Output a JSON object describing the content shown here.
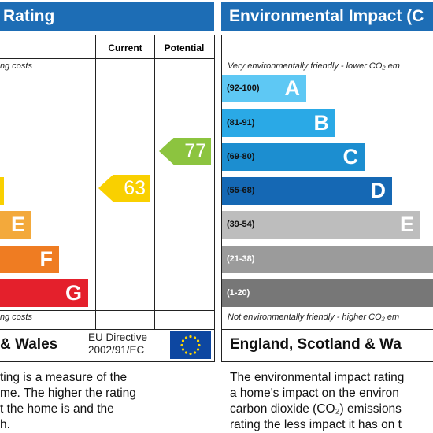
{
  "energy": {
    "title": "Rating",
    "columns": [
      "Current",
      "Potential"
    ],
    "top_note": "ng costs",
    "bands": [
      "E",
      "F",
      "G"
    ],
    "bottom_note": "ng costs",
    "current": 63,
    "potential": 77,
    "footer": "& Wales",
    "directive": [
      "EU Directive",
      "2002/91/EC"
    ],
    "description": [
      "ting is a measure of the",
      "me. The higher the rating",
      "t the home is and the",
      "h."
    ]
  },
  "environmental": {
    "title": "Environmental Impact (C",
    "top_note": "Very environmentally friendly - lower CO₂ em",
    "bands": [
      {
        "range": "(92-100)",
        "letter": "A"
      },
      {
        "range": "(81-91)",
        "letter": "B"
      },
      {
        "range": "(69-80)",
        "letter": "C"
      },
      {
        "range": "(55-68)",
        "letter": "D"
      },
      {
        "range": "(39-54)",
        "letter": "E"
      },
      {
        "range": "(21-38)",
        "letter": "F"
      },
      {
        "range": "(1-20)"
      }
    ],
    "bottom_note": "Not environmentally friendly - higher CO₂ em",
    "footer": "England, Scotland & Wa",
    "description": [
      "The environmental impact rating",
      "a home's impact on the environ",
      "carbon dioxide (CO₂) emissions",
      "rating the less impact it has on t"
    ]
  }
}
